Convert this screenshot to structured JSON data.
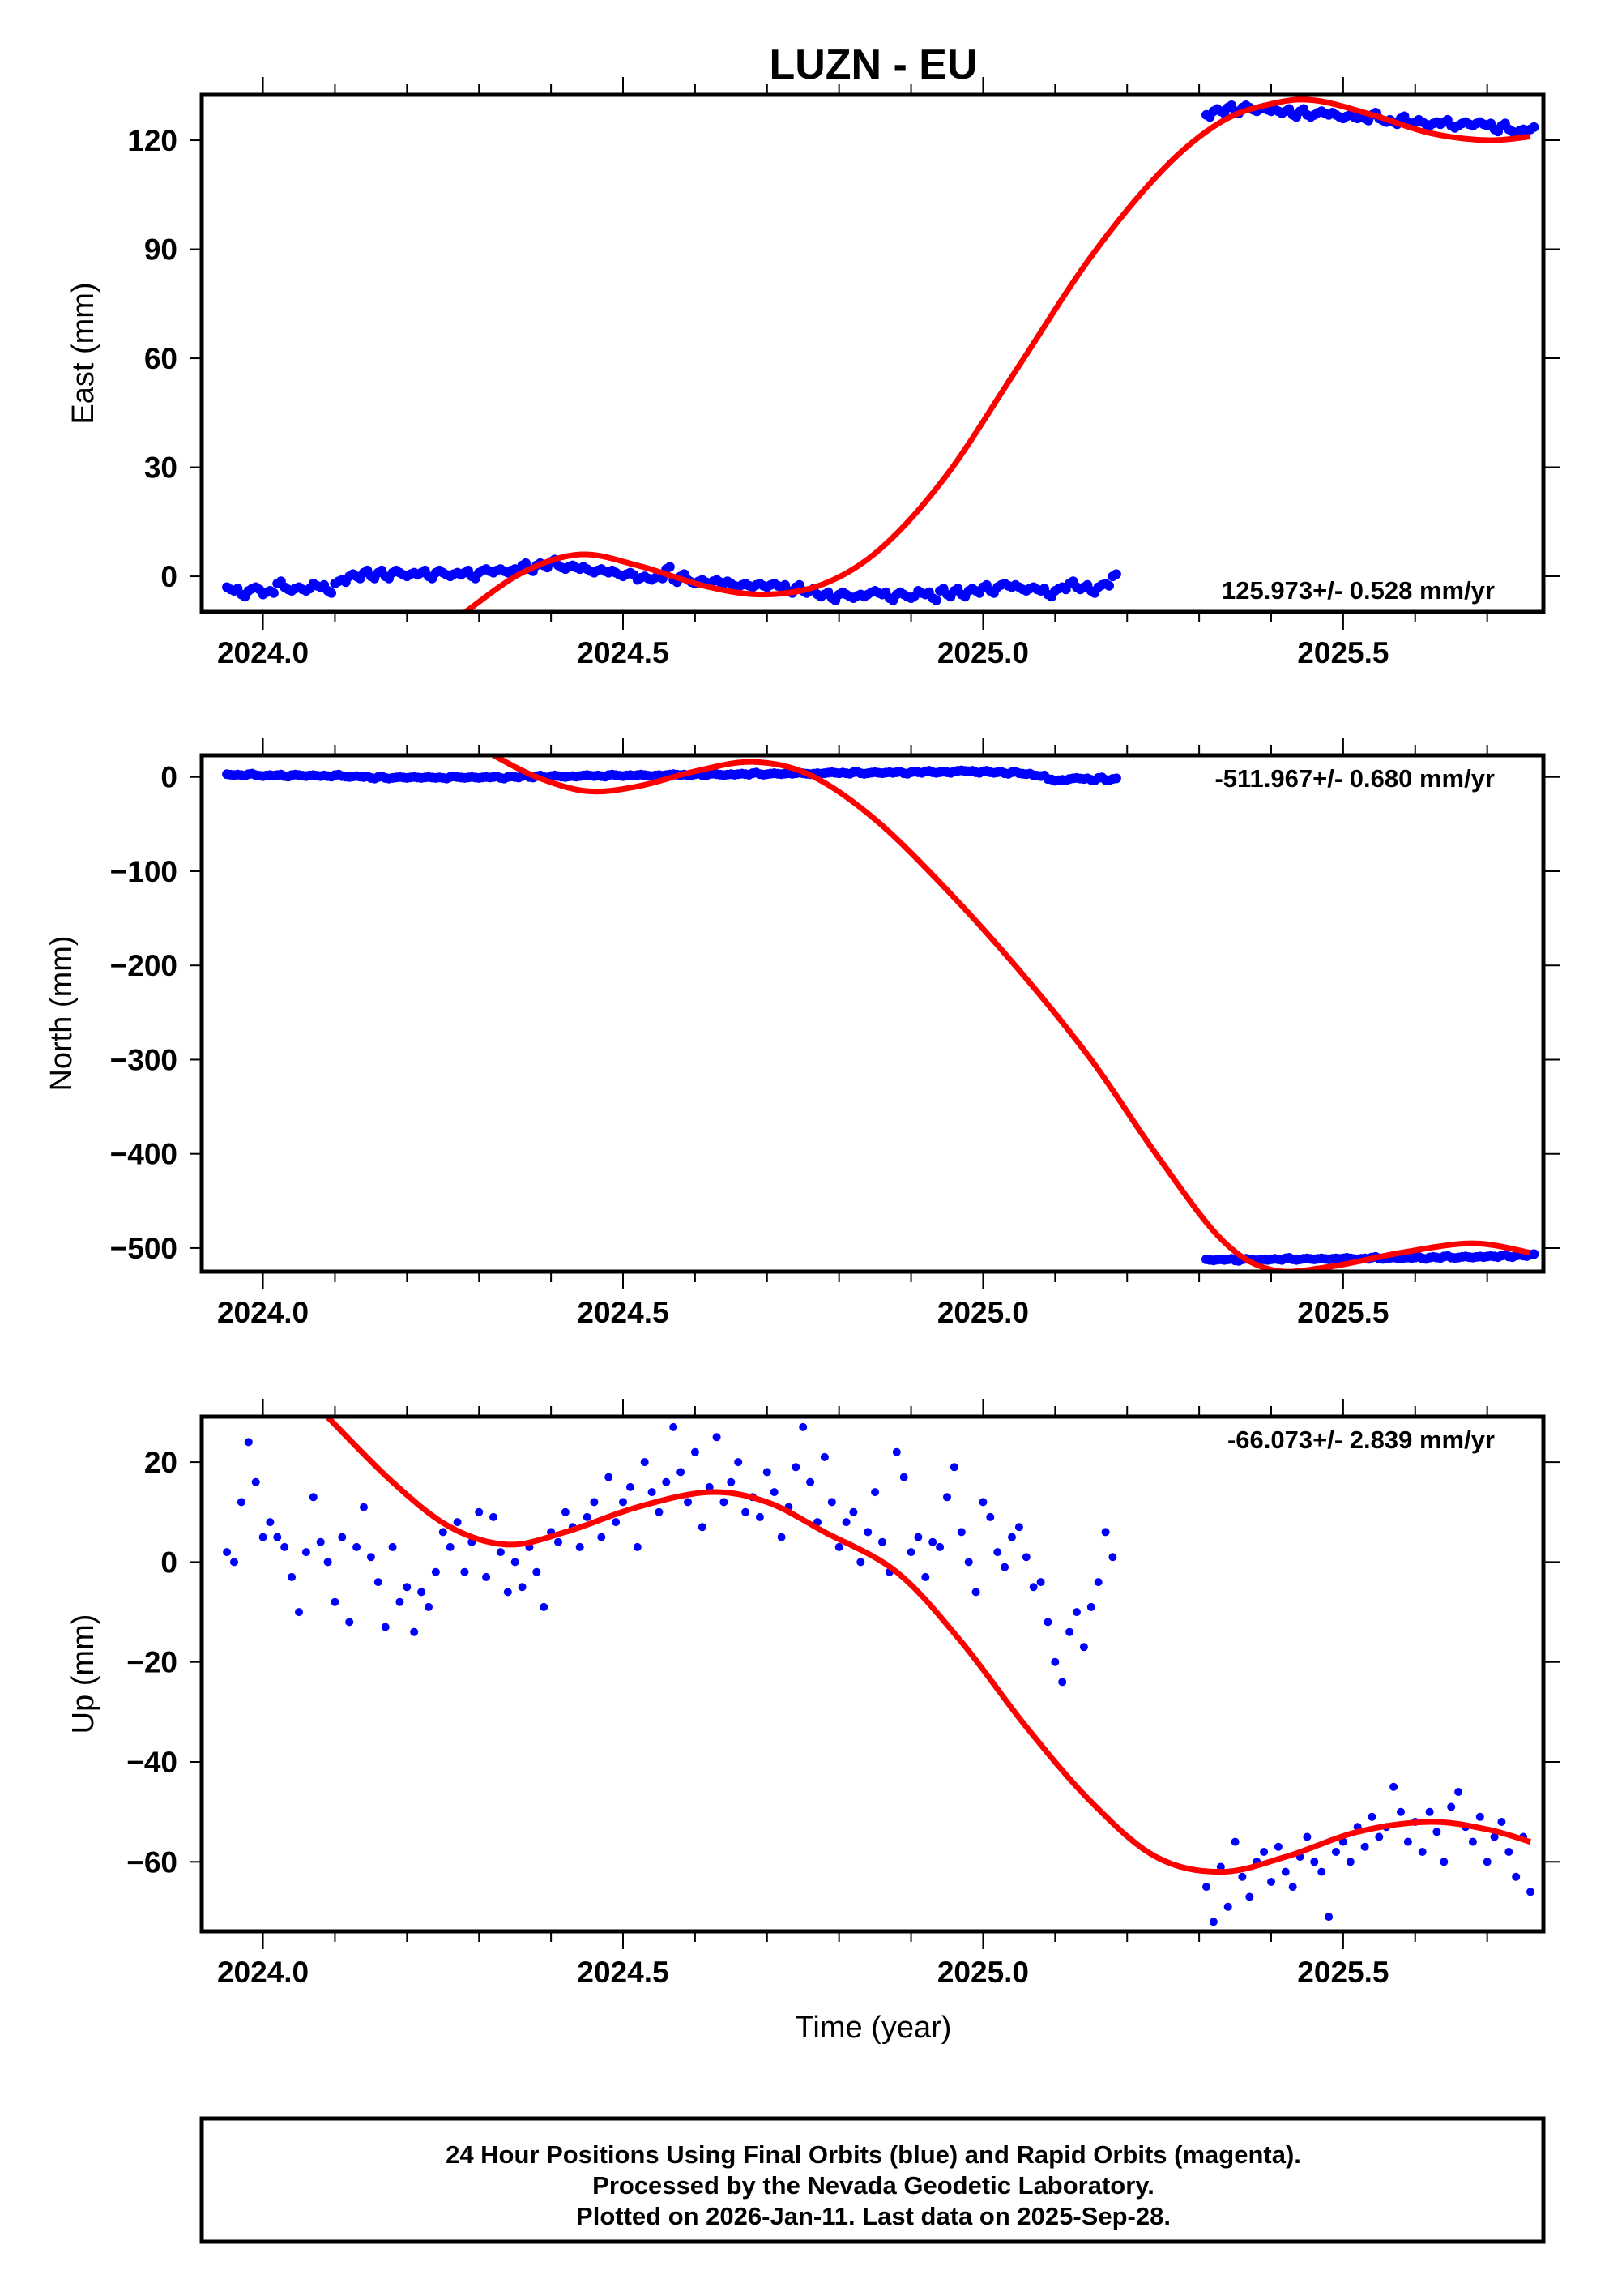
{
  "chart_data": {
    "type": "scatter",
    "title": "LUZN - EU",
    "xlabel": "Time (year)",
    "xlim": [
      2023.915,
      2025.778
    ],
    "x_ticks": [
      2024.0,
      2024.5,
      2025.0,
      2025.5
    ],
    "x_tick_labels": [
      "2024.0",
      "2024.5",
      "2025.0",
      "2025.5"
    ],
    "colors": {
      "points": "#0000ff",
      "fit": "#ff0000",
      "frame": "#000000"
    },
    "panels": [
      {
        "name": "east",
        "ylabel": "East (mm)",
        "ylim": [
          -9.8,
          132.5
        ],
        "y_ticks": [
          0,
          30,
          60,
          90,
          120
        ],
        "y_tick_labels": [
          "0",
          "30",
          "60",
          "90",
          "120"
        ],
        "rate_label": "125.973+/- 0.528 mm/yr",
        "rate_position": "bottom-right",
        "point_radius": 6,
        "segments": [
          {
            "x_start": 2023.95,
            "x_step": 0.01,
            "values": [
              -3,
              -4,
              -5,
              -4,
              -3,
              -5,
              -4,
              -2,
              -3,
              -4,
              -3,
              -4,
              -2,
              -3,
              -4,
              -2,
              -1,
              0,
              0,
              1,
              0,
              1,
              0,
              1,
              1,
              0,
              1,
              1,
              0,
              1,
              1,
              0,
              1,
              1,
              0,
              1,
              2,
              1,
              2,
              1,
              2,
              3,
              2,
              3,
              3,
              4,
              3,
              2,
              3,
              2,
              2,
              1,
              2,
              1,
              1,
              0,
              1,
              -1,
              0,
              -1,
              0,
              2,
              -1,
              0,
              -1,
              -2,
              -1,
              -2,
              -1,
              -2,
              -2,
              -3,
              -2,
              -3,
              -2,
              -3,
              -2,
              -3,
              -4,
              -3,
              -4,
              -4,
              -5,
              -5,
              -6,
              -5,
              -5,
              -6,
              -5,
              -5,
              -4,
              -5,
              -6,
              -5,
              -5,
              -6,
              -4,
              -5,
              -6,
              -4,
              -5,
              -4,
              -5,
              -4,
              -4,
              -3,
              -4,
              -3,
              -2,
              -3,
              -3,
              -4,
              -3,
              -4,
              -5,
              -4,
              -3,
              -2,
              -3,
              -3,
              -4,
              -3,
              -2,
              0
            ]
          },
          {
            "x_start": 2025.31,
            "x_step": 0.01,
            "values": [
              127,
              128,
              128,
              129,
              128,
              129,
              129,
              128,
              129,
              128,
              128,
              128,
              127,
              128,
              127,
              127,
              128,
              127,
              127,
              126,
              127,
              126,
              126,
              127,
              126,
              125,
              125,
              126,
              125,
              125,
              125,
              124,
              125,
              125,
              124,
              124,
              125,
              124,
              125,
              124,
              123,
              124,
              123,
              122,
              123,
              123
            ]
          }
        ],
        "fit": [
          [
            2024.28,
            -10
          ],
          [
            2024.36,
            1
          ],
          [
            2024.44,
            6
          ],
          [
            2024.52,
            3
          ],
          [
            2024.62,
            -3
          ],
          [
            2024.7,
            -5
          ],
          [
            2024.78,
            -2
          ],
          [
            2024.86,
            8
          ],
          [
            2024.95,
            28
          ],
          [
            2025.05,
            58
          ],
          [
            2025.15,
            88
          ],
          [
            2025.25,
            112
          ],
          [
            2025.33,
            125
          ],
          [
            2025.4,
            130
          ],
          [
            2025.46,
            131
          ],
          [
            2025.54,
            127
          ],
          [
            2025.62,
            122
          ],
          [
            2025.7,
            120
          ],
          [
            2025.76,
            121
          ]
        ]
      },
      {
        "name": "north",
        "ylabel": "North (mm)",
        "ylim": [
          -525,
          23
        ],
        "y_ticks": [
          0,
          -100,
          -200,
          -300,
          -400,
          -500
        ],
        "y_tick_labels": [
          "0",
          "−100",
          "−200",
          "−300",
          "−400",
          "−500"
        ],
        "rate_label": "-511.967+/- 0.680 mm/yr",
        "rate_position": "top-right",
        "point_radius": 6,
        "segments": [
          {
            "x_start": 2023.95,
            "x_step": 0.01,
            "values": [
              3,
              2,
              2,
              3,
              2,
              1,
              2,
              2,
              1,
              2,
              2,
              1,
              2,
              1,
              1,
              2,
              1,
              0,
              1,
              0,
              -1,
              0,
              -1,
              -1,
              0,
              -1,
              0,
              -1,
              0,
              -1,
              -1,
              0,
              0,
              -1,
              0,
              -1,
              0,
              0,
              -1,
              0,
              0,
              1,
              0,
              1,
              0,
              1,
              1,
              0,
              1,
              1,
              2,
              1,
              1,
              2,
              2,
              1,
              2,
              2,
              2,
              1,
              2,
              2,
              3,
              2,
              2,
              3,
              2,
              3,
              3,
              2,
              3,
              3,
              3,
              4,
              3,
              3,
              4,
              3,
              4,
              4,
              4,
              3,
              4,
              4,
              5,
              4,
              4,
              5,
              4,
              4,
              5,
              4,
              5,
              5,
              4,
              5,
              5,
              6,
              5,
              5,
              5,
              6,
              7,
              6,
              5,
              6,
              5,
              5,
              4,
              5,
              4,
              3,
              2,
              1,
              -2,
              -4,
              -3,
              -2,
              -1,
              -2,
              -3,
              -1,
              -3,
              -2
            ]
          },
          {
            "x_start": 2025.31,
            "x_step": 0.01,
            "values": [
              -512,
              -513,
              -512,
              -512,
              -513,
              -512,
              -512,
              -513,
              -512,
              -512,
              -512,
              -511,
              -512,
              -512,
              -511,
              -512,
              -511,
              -512,
              -511,
              -511,
              -511,
              -512,
              -511,
              -510,
              -511,
              -511,
              -510,
              -511,
              -510,
              -510,
              -511,
              -510,
              -510,
              -509,
              -510,
              -510,
              -509,
              -510,
              -509,
              -509,
              -509,
              -508,
              -509,
              -508,
              -508,
              -507
            ]
          }
        ],
        "fit": [
          [
            2024.32,
            23
          ],
          [
            2024.38,
            0
          ],
          [
            2024.45,
            -15
          ],
          [
            2024.52,
            -10
          ],
          [
            2024.6,
            6
          ],
          [
            2024.68,
            16
          ],
          [
            2024.76,
            2
          ],
          [
            2024.85,
            -45
          ],
          [
            2024.95,
            -120
          ],
          [
            2025.05,
            -205
          ],
          [
            2025.15,
            -300
          ],
          [
            2025.24,
            -400
          ],
          [
            2025.33,
            -490
          ],
          [
            2025.4,
            -523
          ],
          [
            2025.48,
            -520
          ],
          [
            2025.58,
            -505
          ],
          [
            2025.68,
            -495
          ],
          [
            2025.76,
            -505
          ]
        ]
      },
      {
        "name": "up",
        "ylabel": "Up (mm)",
        "ylim": [
          -73.9,
          29.1
        ],
        "y_ticks": [
          20,
          0,
          -20,
          -40,
          -60
        ],
        "y_tick_labels": [
          "20",
          "0",
          "−20",
          "−40",
          "−60"
        ],
        "rate_label": "-66.073+/- 2.839 mm/yr",
        "rate_position": "top-right",
        "point_radius": 5,
        "segments": [
          {
            "x_start": 2023.95,
            "x_step": 0.01,
            "values": [
              2,
              0,
              12,
              24,
              16,
              5,
              8,
              5,
              3,
              -3,
              -10,
              2,
              13,
              4,
              0,
              -8,
              5,
              -12,
              3,
              11,
              1,
              -4,
              -13,
              3,
              -8,
              -5,
              -14,
              -6,
              -9,
              -2,
              6,
              3,
              8,
              -2,
              4,
              10,
              -3,
              9,
              2,
              -6,
              0,
              -5,
              3,
              -2,
              -9,
              6,
              4,
              10,
              7,
              3,
              9,
              12,
              5,
              17,
              8,
              12,
              15,
              3,
              20,
              14,
              10,
              16,
              27,
              18,
              12,
              22,
              7,
              15,
              25,
              12,
              16,
              20,
              10,
              13,
              9,
              18,
              14,
              5,
              11,
              19,
              27,
              16,
              8,
              21,
              12,
              3,
              8,
              10,
              0,
              6,
              14,
              4,
              -2,
              22,
              17,
              2,
              5,
              -3,
              4,
              3,
              13,
              19,
              6,
              0,
              -6,
              12,
              9,
              2,
              -1,
              5,
              7,
              1,
              -5,
              -4,
              -12,
              -20,
              -24,
              -14,
              -10,
              -17,
              -9,
              -4,
              6,
              1
            ]
          },
          {
            "x_start": 2025.31,
            "x_step": 0.01,
            "values": [
              -65,
              -72,
              -61,
              -69,
              -56,
              -63,
              -67,
              -60,
              -58,
              -64,
              -57,
              -62,
              -65,
              -59,
              -55,
              -60,
              -62,
              -71,
              -58,
              -56,
              -60,
              -53,
              -57,
              -51,
              -55,
              -53,
              -45,
              -50,
              -56,
              -52,
              -58,
              -50,
              -54,
              -60,
              -49,
              -46,
              -53,
              -56,
              -51,
              -60,
              -55,
              -52,
              -58,
              -63,
              -55,
              -66
            ]
          }
        ],
        "fit": [
          [
            2024.09,
            29
          ],
          [
            2024.18,
            16
          ],
          [
            2024.26,
            7
          ],
          [
            2024.34,
            3.5
          ],
          [
            2024.42,
            6
          ],
          [
            2024.52,
            11
          ],
          [
            2024.62,
            14
          ],
          [
            2024.7,
            12
          ],
          [
            2024.78,
            6
          ],
          [
            2024.88,
            -2
          ],
          [
            2024.97,
            -16
          ],
          [
            2025.06,
            -33
          ],
          [
            2025.15,
            -48
          ],
          [
            2025.24,
            -59
          ],
          [
            2025.33,
            -62
          ],
          [
            2025.42,
            -59
          ],
          [
            2025.52,
            -54
          ],
          [
            2025.62,
            -52
          ],
          [
            2025.7,
            -53.5
          ],
          [
            2025.76,
            -56
          ]
        ]
      }
    ],
    "footer_lines": [
      "24 Hour Positions Using Final Orbits (blue) and Rapid Orbits (magenta).",
      "Processed by the Nevada Geodetic Laboratory.",
      "Plotted on 2026-Jan-11. Last data on 2025-Sep-28."
    ]
  }
}
